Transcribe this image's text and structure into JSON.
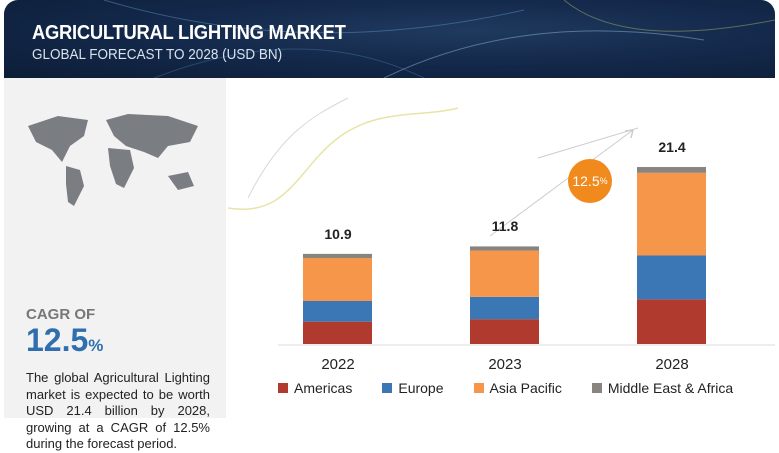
{
  "header": {
    "title": "AGRICULTURAL LIGHTING MARKET",
    "subtitle": "GLOBAL FORECAST TO 2028 (USD BN)"
  },
  "left_panel": {
    "cagr_label": "CAGR OF",
    "cagr_value": "12.5",
    "cagr_unit": "%",
    "description": "The global Agricultural Lighting market is expected to be worth USD 21.4 billion by 2028, growing at a CAGR of 12.5% during the forecast period."
  },
  "colors": {
    "Americas": "#b03a2e",
    "Europe": "#3a77b4",
    "Asia Pacific": "#f5964a",
    "Middle East & Africa": "#888580",
    "cagr_bubble": "#f08a1c"
  },
  "chart_data": {
    "type": "bar",
    "stacked": true,
    "title": "AGRICULTURAL LIGHTING MARKET — GLOBAL FORECAST TO 2028 (USD BN)",
    "categories": [
      "2022",
      "2023",
      "2028"
    ],
    "totals": [
      "10.9",
      "11.8",
      "21.4"
    ],
    "series": [
      {
        "name": "Americas",
        "values": [
          2.7,
          3.0,
          5.4
        ]
      },
      {
        "name": "Europe",
        "values": [
          2.5,
          2.7,
          5.3
        ]
      },
      {
        "name": "Asia Pacific",
        "values": [
          5.2,
          5.6,
          10.0
        ]
      },
      {
        "name": "Middle East & Africa",
        "values": [
          0.5,
          0.5,
          0.7
        ]
      }
    ],
    "annotation": {
      "cagr": "12.5",
      "unit": "%"
    },
    "legend_position": "bottom",
    "grid": false,
    "ylim": [
      0,
      25
    ]
  }
}
